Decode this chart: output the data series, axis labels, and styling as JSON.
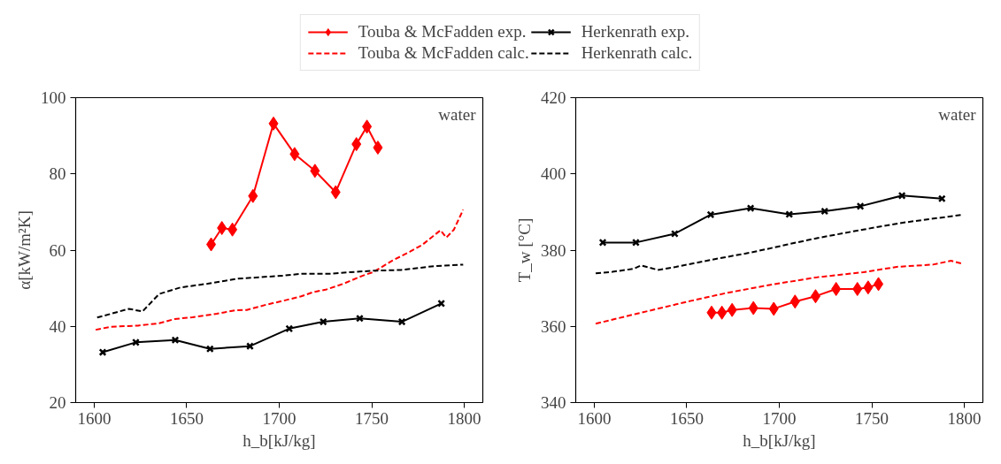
{
  "chart_data": [
    {
      "type": "line",
      "xlabel": "h_b[kJ/kg]",
      "ylabel": "α[kW/m²K]",
      "annotations": [
        "water"
      ],
      "xlim": [
        1590,
        1810
      ],
      "xticks": [
        1600,
        1650,
        1700,
        1750,
        1800
      ],
      "ylim": [
        20,
        100
      ],
      "yticks": [
        20,
        40,
        60,
        80,
        100
      ],
      "grid": false,
      "legend": "top",
      "series": [
        {
          "name": "Touba & McFadden exp.",
          "color": "#ff0000",
          "marker": "diamond",
          "line_style": "solid",
          "x": [
            1663.2,
            1669,
            1674.7,
            1685.8,
            1696.9,
            1708.3,
            1719.3,
            1730.5,
            1741.7,
            1747.4,
            1753.3
          ],
          "values": [
            61.5,
            65.8,
            65.4,
            74.2,
            93.2,
            85.2,
            80.8,
            75.2,
            87.8,
            92.4,
            86.9
          ]
        },
        {
          "name": "Touba & McFadden calc.",
          "color": "#ff0000",
          "marker": "none",
          "line_style": "dashed",
          "x": [
            1600.8,
            1609,
            1623.7,
            1635.1,
            1643.3,
            1653.1,
            1666.2,
            1676,
            1682.5,
            1692.3,
            1702.1,
            1711.9,
            1718.5,
            1725,
            1734.8,
            1744.6,
            1751.1,
            1760.9,
            1770.7,
            1777.3,
            1787.1,
            1790.3,
            1794.4,
            1799.4
          ],
          "values": [
            39.1,
            39.9,
            40.2,
            40.8,
            41.9,
            42.4,
            43.3,
            44.2,
            44.3,
            45.6,
            46.7,
            47.9,
            49,
            49.6,
            51.2,
            53.2,
            54.3,
            57.2,
            59.6,
            61.4,
            65.2,
            63.3,
            65.4,
            70.6
          ]
        },
        {
          "name": "Herkenrath exp.",
          "color": "#000000",
          "marker": "cross",
          "line_style": "solid",
          "x": [
            1604.6,
            1622.5,
            1643.8,
            1662.6,
            1684.2,
            1705.4,
            1723.8,
            1743.5,
            1766.3,
            1787.6
          ],
          "values": [
            33.2,
            35.8,
            36.4,
            34.1,
            34.8,
            39.4,
            41.2,
            42.1,
            41.2,
            46
          ]
        },
        {
          "name": "Herkenrath calc.",
          "color": "#000000",
          "marker": "none",
          "line_style": "dashed",
          "x": [
            1601.6,
            1618.8,
            1626.1,
            1635.1,
            1646.6,
            1661.3,
            1677.6,
            1702.1,
            1711.9,
            1728.3,
            1738.1,
            1751.1,
            1765.8,
            1783.8,
            1799.4
          ],
          "values": [
            42.3,
            44.6,
            43.9,
            48.5,
            50.2,
            51.2,
            52.5,
            53.3,
            53.8,
            53.8,
            54.2,
            54.6,
            54.8,
            55.8,
            56.2
          ]
        }
      ]
    },
    {
      "type": "line",
      "xlabel": "h_b[kJ/kg]",
      "ylabel": "T_w [°C]",
      "annotations": [
        "water"
      ],
      "xlim": [
        1590,
        1810
      ],
      "xticks": [
        1600,
        1650,
        1700,
        1750,
        1800
      ],
      "ylim": [
        340,
        420
      ],
      "yticks": [
        340,
        360,
        380,
        400,
        420
      ],
      "grid": false,
      "series": [
        {
          "color": "#ff0000",
          "marker": "diamond",
          "line_style": "solid",
          "x": [
            1663.4,
            1669,
            1674.5,
            1686,
            1697,
            1708.5,
            1719.6,
            1730.7,
            1742.2,
            1748,
            1753.6
          ],
          "values": [
            363.6,
            363.6,
            364.3,
            364.8,
            364.6,
            366.5,
            367.9,
            369.8,
            369.8,
            370.2,
            371.1
          ]
        },
        {
          "color": "#ff0000",
          "marker": "none",
          "line_style": "dashed",
          "x": [
            1600.8,
            1622.9,
            1652.3,
            1671.9,
            1696.4,
            1720.9,
            1745.4,
            1763.4,
            1783,
            1792.8,
            1798.5
          ],
          "values": [
            360.7,
            363.3,
            366.7,
            368.8,
            371,
            372.9,
            374.2,
            375.6,
            376.2,
            377.2,
            376.5
          ]
        },
        {
          "color": "#000000",
          "marker": "cross",
          "line_style": "solid",
          "x": [
            1604.6,
            1622.5,
            1643.5,
            1662.9,
            1684.5,
            1705.4,
            1724.5,
            1743.8,
            1766.3,
            1787.9
          ],
          "values": [
            382,
            382,
            384.3,
            389.3,
            391,
            389.4,
            390.2,
            391.5,
            394.3,
            393.5
          ]
        },
        {
          "color": "#000000",
          "marker": "none",
          "line_style": "dashed",
          "x": [
            1600.8,
            1609.8,
            1621.2,
            1625.3,
            1634.3,
            1644.1,
            1663.7,
            1685,
            1704.6,
            1720.9,
            1745.4,
            1766.7,
            1799.4
          ],
          "values": [
            373.9,
            374.3,
            375.1,
            376,
            374.8,
            375.6,
            377.5,
            379.4,
            381.5,
            383.2,
            385.4,
            387.2,
            389.3
          ]
        }
      ]
    }
  ]
}
